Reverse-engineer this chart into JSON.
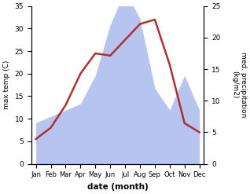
{
  "months": [
    "Jan",
    "Feb",
    "Mar",
    "Apr",
    "May",
    "Jun",
    "Jul",
    "Aug",
    "Sep",
    "Oct",
    "Nov",
    "Dec"
  ],
  "month_indices": [
    0,
    1,
    2,
    3,
    4,
    5,
    6,
    7,
    8,
    9,
    10,
    11
  ],
  "temperature": [
    5.5,
    8.0,
    13.0,
    20.0,
    24.5,
    24.0,
    27.5,
    31.0,
    32.0,
    22.0,
    9.0,
    7.0
  ],
  "precipitation": [
    6.5,
    7.5,
    8.5,
    9.5,
    14.0,
    22.0,
    27.5,
    23.0,
    12.0,
    8.5,
    14.0,
    8.5
  ],
  "temp_color": "#b03030",
  "precip_color": "#b8c4f0",
  "temp_ylim": [
    0,
    35
  ],
  "temp_yticks": [
    0,
    5,
    10,
    15,
    20,
    25,
    30,
    35
  ],
  "precip_ylim": [
    0,
    25
  ],
  "precip_yticks": [
    0,
    5,
    10,
    15,
    20,
    25
  ],
  "xlabel": "date (month)",
  "ylabel_left": "max temp (C)",
  "ylabel_right": "med. precipitation\n(kg/m2)",
  "figsize": [
    3.18,
    2.47
  ],
  "dpi": 100
}
